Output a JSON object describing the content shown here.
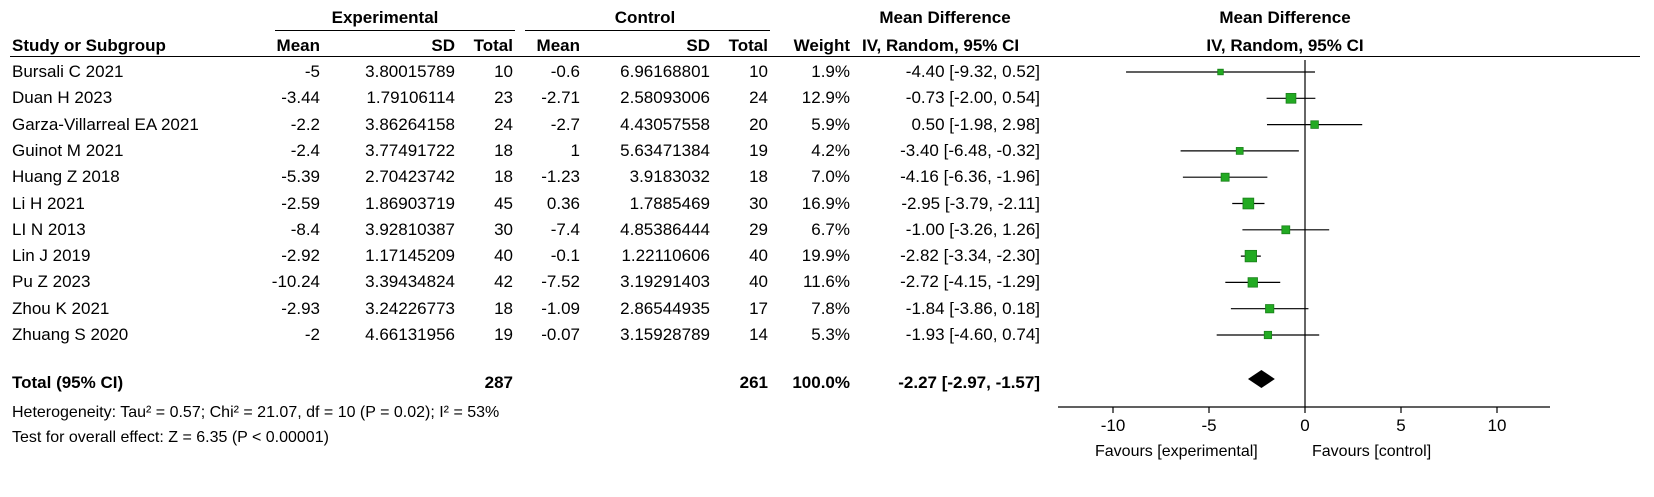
{
  "header": {
    "group_experimental": "Experimental",
    "group_control": "Control",
    "group_md": "Mean Difference",
    "col_study": "Study or Subgroup",
    "col_mean": "Mean",
    "col_sd": "SD",
    "col_total": "Total",
    "col_weight": "Weight",
    "col_method": "IV, Random, 95% CI",
    "plot_title": "Mean Difference",
    "plot_method": "IV, Random, 95% CI"
  },
  "studies": [
    {
      "name": "Bursali C 2021",
      "e_mean": "-5",
      "e_sd": "3.80015789",
      "e_total": "10",
      "c_mean": "-0.6",
      "c_sd": "6.96168801",
      "c_total": "10",
      "weight": "1.9%",
      "ci_text": "-4.40 [-9.32, 0.52]"
    },
    {
      "name": "Duan H 2023",
      "e_mean": "-3.44",
      "e_sd": "1.79106114",
      "e_total": "23",
      "c_mean": "-2.71",
      "c_sd": "2.58093006",
      "c_total": "24",
      "weight": "12.9%",
      "ci_text": "-0.73 [-2.00, 0.54]"
    },
    {
      "name": "Garza-Villarreal EA  2021",
      "e_mean": "-2.2",
      "e_sd": "3.86264158",
      "e_total": "24",
      "c_mean": "-2.7",
      "c_sd": "4.43057558",
      "c_total": "20",
      "weight": "5.9%",
      "ci_text": "0.50 [-1.98, 2.98]"
    },
    {
      "name": "Guinot M 2021",
      "e_mean": "-2.4",
      "e_sd": "3.77491722",
      "e_total": "18",
      "c_mean": "1",
      "c_sd": "5.63471384",
      "c_total": "19",
      "weight": "4.2%",
      "ci_text": "-3.40 [-6.48, -0.32]"
    },
    {
      "name": "Huang Z 2018",
      "e_mean": "-5.39",
      "e_sd": "2.70423742",
      "e_total": "18",
      "c_mean": "-1.23",
      "c_sd": "3.9183032",
      "c_total": "18",
      "weight": "7.0%",
      "ci_text": "-4.16 [-6.36, -1.96]"
    },
    {
      "name": "Li H 2021",
      "e_mean": "-2.59",
      "e_sd": "1.86903719",
      "e_total": "45",
      "c_mean": "0.36",
      "c_sd": "1.7885469",
      "c_total": "30",
      "weight": "16.9%",
      "ci_text": "-2.95 [-3.79, -2.11]"
    },
    {
      "name": "LI N 2013",
      "e_mean": "-8.4",
      "e_sd": "3.92810387",
      "e_total": "30",
      "c_mean": "-7.4",
      "c_sd": "4.85386444",
      "c_total": "29",
      "weight": "6.7%",
      "ci_text": "-1.00 [-3.26, 1.26]"
    },
    {
      "name": "Lin J 2019",
      "e_mean": "-2.92",
      "e_sd": "1.17145209",
      "e_total": "40",
      "c_mean": "-0.1",
      "c_sd": "1.22110606",
      "c_total": "40",
      "weight": "19.9%",
      "ci_text": "-2.82 [-3.34, -2.30]"
    },
    {
      "name": "Pu Z 2023",
      "e_mean": "-10.24",
      "e_sd": "3.39434824",
      "e_total": "42",
      "c_mean": "-7.52",
      "c_sd": "3.19291403",
      "c_total": "40",
      "weight": "11.6%",
      "ci_text": "-2.72 [-4.15, -1.29]"
    },
    {
      "name": "Zhou K 2021",
      "e_mean": "-2.93",
      "e_sd": "3.24226773",
      "e_total": "18",
      "c_mean": "-1.09",
      "c_sd": "2.86544935",
      "c_total": "17",
      "weight": "7.8%",
      "ci_text": "-1.84 [-3.86, 0.18]"
    },
    {
      "name": "Zhuang S 2020",
      "e_mean": "-2",
      "e_sd": "4.66131956",
      "e_total": "19",
      "c_mean": "-0.07",
      "c_sd": "3.15928789",
      "c_total": "14",
      "weight": "5.3%",
      "ci_text": "-1.93 [-4.60, 0.74]"
    }
  ],
  "total": {
    "label": "Total (95% CI)",
    "e_total": "287",
    "c_total": "261",
    "weight": "100.0%",
    "ci_text": "-2.27 [-2.97, -1.57]"
  },
  "heterogeneity": "Heterogeneity: Tau² = 0.57; Chi² = 21.07, df = 10 (P = 0.02); I² = 53%",
  "overall_effect": "Test for overall effect: Z = 6.35 (P < 0.00001)",
  "axis": {
    "favours_left": "Favours [experimental]",
    "favours_right": "Favours [control]"
  },
  "colors": {
    "marker": "#22aa22",
    "marker_edge": "#1a7f1a",
    "diamond": "#000000",
    "line": "#000000"
  },
  "chart_data": {
    "type": "forest",
    "xlim": [
      -10,
      10
    ],
    "ticks": [
      -10,
      -5,
      0,
      5,
      10
    ],
    "tick_labels": [
      "-10",
      "-5",
      "0",
      "5",
      "10"
    ],
    "points": [
      {
        "md": -4.4,
        "lo": -9.32,
        "hi": 0.52,
        "weight": 1.9
      },
      {
        "md": -0.73,
        "lo": -2.0,
        "hi": 0.54,
        "weight": 12.9
      },
      {
        "md": 0.5,
        "lo": -1.98,
        "hi": 2.98,
        "weight": 5.9
      },
      {
        "md": -3.4,
        "lo": -6.48,
        "hi": -0.32,
        "weight": 4.2
      },
      {
        "md": -4.16,
        "lo": -6.36,
        "hi": -1.96,
        "weight": 7.0
      },
      {
        "md": -2.95,
        "lo": -3.79,
        "hi": -2.11,
        "weight": 16.9
      },
      {
        "md": -1.0,
        "lo": -3.26,
        "hi": 1.26,
        "weight": 6.7
      },
      {
        "md": -2.82,
        "lo": -3.34,
        "hi": -2.3,
        "weight": 19.9
      },
      {
        "md": -2.72,
        "lo": -4.15,
        "hi": -1.29,
        "weight": 11.6
      },
      {
        "md": -1.84,
        "lo": -3.86,
        "hi": 0.18,
        "weight": 7.8
      },
      {
        "md": -1.93,
        "lo": -4.6,
        "hi": 0.74,
        "weight": 5.3
      }
    ],
    "pooled": {
      "md": -2.27,
      "lo": -2.97,
      "hi": -1.57
    }
  }
}
